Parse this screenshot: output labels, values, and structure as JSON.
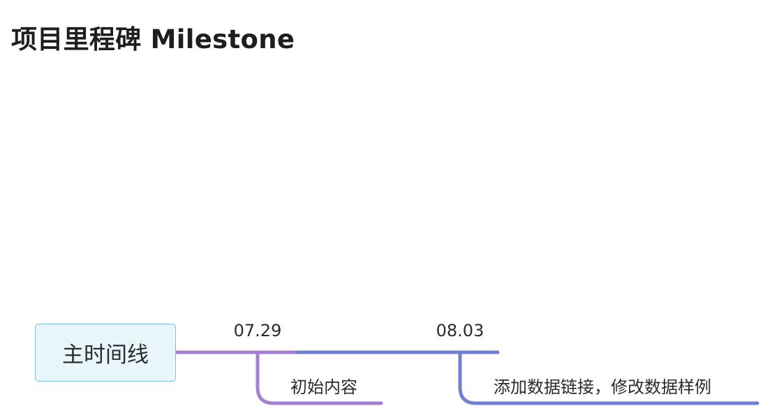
{
  "title": "项目里程碑 Milestone",
  "root": {
    "label": "主时间线",
    "fill": "#e8f6fc",
    "border": "#7fbfdc"
  },
  "milestones": [
    {
      "date": "07.29",
      "description": "初始内容",
      "color": "#a47fd6"
    },
    {
      "date": "08.03",
      "description": "添加数据链接，修改数据样例",
      "color": "#6f7fd4"
    }
  ]
}
